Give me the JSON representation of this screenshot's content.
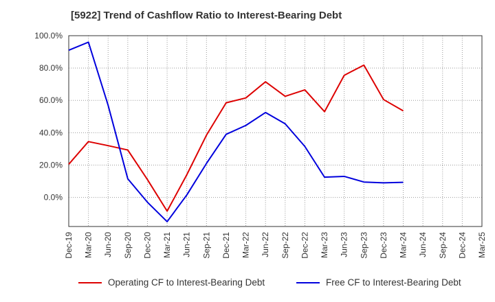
{
  "chart_data": {
    "type": "line",
    "title": "[5922]  Trend of Cashflow Ratio to Interest-Bearing Debt",
    "xlabel": "",
    "ylabel": "",
    "x_tick_labels": [
      "Dec-19",
      "Mar-20",
      "Jun-20",
      "Sep-20",
      "Dec-20",
      "Mar-21",
      "Jun-21",
      "Sep-21",
      "Dec-21",
      "Mar-22",
      "Jun-22",
      "Sep-22",
      "Dec-22",
      "Mar-23",
      "Jun-23",
      "Sep-23",
      "Dec-23",
      "Mar-24",
      "Jun-24",
      "Sep-24",
      "Dec-24",
      "Mar-25"
    ],
    "y_tick_labels": [
      "100.0%",
      "80.0%",
      "60.0%",
      "40.0%",
      "20.0%",
      "0.0%"
    ],
    "y_ticks": [
      100,
      80,
      60,
      40,
      20,
      0
    ],
    "ylim": [
      -18,
      100
    ],
    "grid": true,
    "legend_position": "bottom",
    "series": [
      {
        "name": "Operating CF to Interest-Bearing Debt",
        "color": "#dd0000",
        "x": [
          "Dec-19",
          "Mar-20",
          "Jun-20",
          "Sep-20",
          "Dec-20",
          "Mar-21",
          "Jun-21",
          "Sep-21",
          "Dec-21",
          "Mar-22",
          "Jun-22",
          "Sep-22",
          "Dec-22",
          "Mar-23",
          "Jun-23",
          "Sep-23",
          "Dec-23",
          "Mar-24"
        ],
        "values": [
          20.5,
          34.5,
          32.0,
          29.3,
          11.0,
          -8.5,
          14.0,
          38.5,
          58.5,
          61.5,
          71.5,
          62.5,
          66.5,
          53.0,
          75.5,
          81.8,
          60.5,
          53.5
        ]
      },
      {
        "name": "Free CF to Interest-Bearing Debt",
        "color": "#0000dd",
        "x": [
          "Dec-19",
          "Mar-20",
          "Jun-20",
          "Sep-20",
          "Dec-20",
          "Mar-21",
          "Jun-21",
          "Sep-21",
          "Dec-21",
          "Mar-22",
          "Jun-22",
          "Sep-22",
          "Dec-22",
          "Mar-23",
          "Jun-23",
          "Sep-23",
          "Dec-23",
          "Mar-24"
        ],
        "values": [
          91.0,
          96.0,
          57.0,
          11.5,
          -3.0,
          -15.0,
          1.5,
          21.0,
          39.0,
          44.5,
          52.5,
          45.5,
          31.5,
          12.5,
          13.0,
          9.5,
          9.0,
          9.3
        ]
      }
    ]
  }
}
